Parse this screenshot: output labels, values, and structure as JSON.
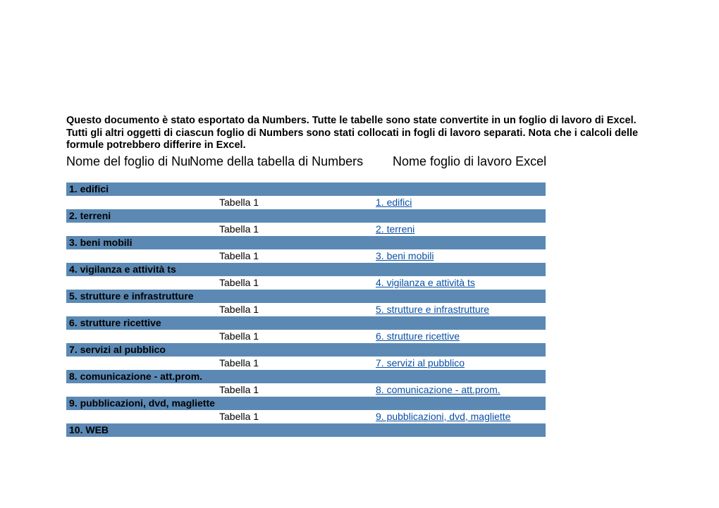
{
  "intro": "Questo documento è stato esportato da Numbers. Tutte le tabelle sono state convertite in un foglio di lavoro di Excel. Tutti gli altri oggetti di ciascun foglio di Numbers sono stati collocati in fogli di lavoro separati. Nota che i calcoli delle formule potrebbero differire in Excel.",
  "headers": {
    "col1": "Nome del foglio di Numbers",
    "col2": "Nome della tabella di Numbers",
    "col3": "Nome foglio di lavoro Excel"
  },
  "colors": {
    "band": "#5b89b4",
    "link": "#094fa4",
    "text": "#000000",
    "bg": "#ffffff"
  },
  "layout": {
    "col1_width": 213,
    "col2_width": 222,
    "col3_width": 245,
    "header_col1_width": 175,
    "header_col2_width": 288,
    "header_col3_width": 220
  },
  "table_label": "Tabella 1",
  "sections": [
    {
      "name": "1. edifici",
      "link": "1. edifici"
    },
    {
      "name": "2. terreni",
      "link": "2. terreni"
    },
    {
      "name": "3. beni mobili",
      "link": "3. beni mobili"
    },
    {
      "name": "4. vigilanza e attività ts",
      "link": "4. vigilanza e attività ts"
    },
    {
      "name": "5. strutture e infrastrutture",
      "link": "5. strutture e infrastrutture"
    },
    {
      "name": "6. strutture ricettive",
      "link": "6. strutture ricettive"
    },
    {
      "name": "7. servizi al pubblico",
      "link": "7. servizi al pubblico"
    },
    {
      "name": "8. comunicazione - att.prom.",
      "link": "8. comunicazione - att.prom."
    },
    {
      "name": "9. pubblicazioni, dvd, magliette",
      "link": "9. pubblicazioni, dvd, magliette"
    },
    {
      "name": "10. WEB",
      "link": null
    }
  ]
}
